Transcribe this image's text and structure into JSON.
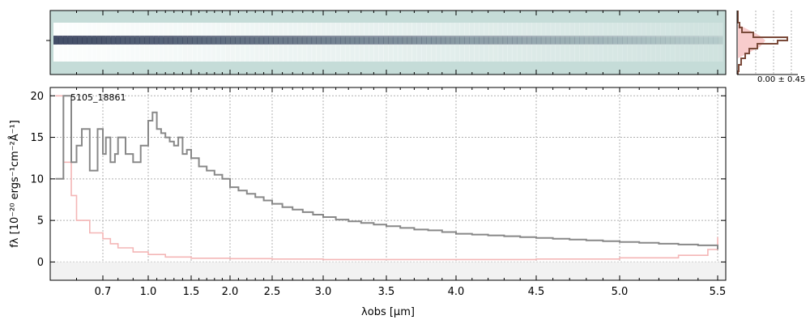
{
  "chart_data": {
    "type": "line",
    "annotation": "5105_18861",
    "xlabel": "λobs [μm]",
    "ylabel": "fλ [10⁻²⁰ ergs⁻¹cm⁻²Å⁻¹]",
    "x_ticks": [
      "0.7",
      "1.0",
      "1.5",
      "2.0",
      "2.5",
      "3.0",
      "3.5",
      "4.0",
      "4.5",
      "5.0",
      "5.5"
    ],
    "x_tick_values": [
      0.7,
      1.0,
      1.5,
      2.0,
      2.5,
      3.0,
      3.5,
      4.0,
      4.5,
      5.0,
      5.5
    ],
    "y_ticks": [
      "0",
      "5",
      "10",
      "15",
      "20"
    ],
    "y_tick_values": [
      0,
      5,
      10,
      15,
      20
    ],
    "ylim": [
      -2.2,
      21
    ],
    "xlim": [
      0.5,
      5.52
    ],
    "grid": true,
    "inset_label": "0.00 ± 0.45",
    "colors": {
      "flux": "#888888",
      "error": "#f4b6b6",
      "spectrum2d_bg": "#c5dcd8",
      "profile": "#7a4a3a",
      "profile_fill": "#f8cccc"
    },
    "series": [
      {
        "name": "",
        "x": [
          0.52,
          0.55,
          0.58,
          0.6,
          0.62,
          0.65,
          0.68,
          0.7,
          0.72,
          0.75,
          0.78,
          0.8,
          0.85,
          0.9,
          0.95,
          1.0,
          1.05,
          1.1,
          1.15,
          1.2,
          1.25,
          1.3,
          1.35,
          1.4,
          1.45,
          1.5,
          1.6,
          1.7,
          1.8,
          1.9,
          2.0,
          2.1,
          2.2,
          2.3,
          2.4,
          2.5,
          2.6,
          2.7,
          2.8,
          2.9,
          3.0,
          3.1,
          3.2,
          3.3,
          3.4,
          3.5,
          3.6,
          3.7,
          3.8,
          3.9,
          4.0,
          4.1,
          4.2,
          4.3,
          4.4,
          4.5,
          4.6,
          4.7,
          4.8,
          4.9,
          5.0,
          5.1,
          5.2,
          5.3,
          5.4,
          5.5
        ],
        "y": [
          10,
          20,
          12,
          14,
          16,
          11,
          16,
          13,
          15,
          12,
          13,
          15,
          13,
          12,
          14,
          17,
          18,
          16,
          15.5,
          15,
          14.5,
          14,
          15,
          13,
          13.5,
          12.5,
          11.5,
          11,
          10.5,
          10,
          9,
          8.6,
          8.2,
          7.8,
          7.4,
          7,
          6.6,
          6.3,
          6,
          5.7,
          5.4,
          5.1,
          4.9,
          4.7,
          4.5,
          4.3,
          4.1,
          3.9,
          3.8,
          3.6,
          3.4,
          3.3,
          3.2,
          3.1,
          3.0,
          2.9,
          2.8,
          2.7,
          2.6,
          2.5,
          2.4,
          2.3,
          2.2,
          2.1,
          2.0,
          1.5
        ]
      },
      {
        "name": "",
        "x": [
          0.52,
          0.55,
          0.58,
          0.6,
          0.65,
          0.7,
          0.75,
          0.8,
          0.9,
          1.0,
          1.2,
          1.5,
          2.0,
          2.5,
          3.0,
          3.5,
          4.0,
          4.5,
          5.0,
          5.3,
          5.45,
          5.5
        ],
        "y": [
          20,
          12,
          8,
          5,
          3.5,
          2.8,
          2.2,
          1.7,
          1.2,
          0.9,
          0.6,
          0.45,
          0.4,
          0.35,
          0.3,
          0.3,
          0.3,
          0.35,
          0.5,
          0.8,
          1.5,
          3
        ]
      }
    ]
  }
}
